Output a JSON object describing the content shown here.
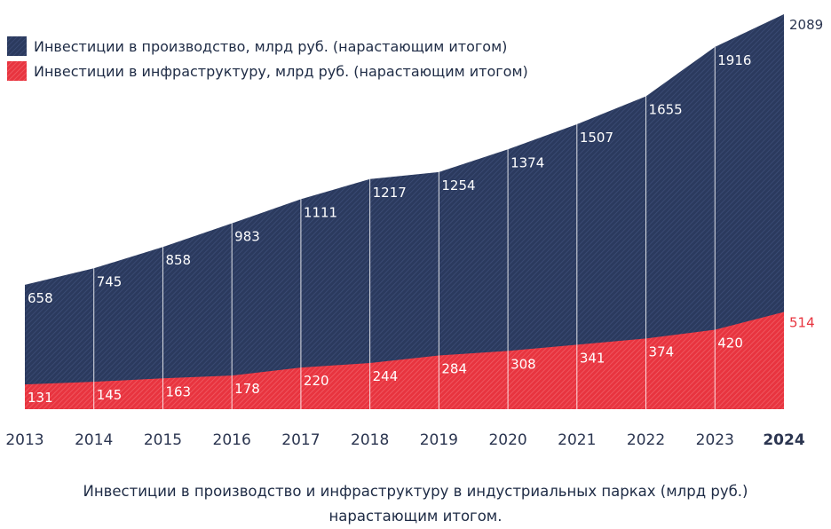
{
  "legend": {
    "series_production": "Инвестиции в производство, млрд руб. (нарастающим итогом)",
    "series_infrastructure": "Инвестиции в инфраструктуру, млрд руб. (нарастающим итогом)"
  },
  "caption": {
    "line1": "Инвестиции в производство и инфраструктуру в индустриальных парках (млрд руб.)",
    "line2": "нарастающим итогом."
  },
  "colors": {
    "production": "#2b3a5e",
    "infrastructure": "#e8343f",
    "axis_text": "#2b3550"
  },
  "chart_data": {
    "type": "area",
    "categories": [
      "2013",
      "2014",
      "2015",
      "2016",
      "2017",
      "2018",
      "2019",
      "2020",
      "2021",
      "2022",
      "2023",
      "2024"
    ],
    "highlight_category": "2024",
    "series": [
      {
        "name": "Инвестиции в производство, млрд руб. (нарастающим итогом)",
        "values": [
          658,
          745,
          858,
          983,
          1111,
          1217,
          1254,
          1374,
          1507,
          1655,
          1916,
          2089
        ]
      },
      {
        "name": "Инвестиции в инфраструктуру, млрд руб. (нарастающим итогом)",
        "values": [
          131,
          145,
          163,
          178,
          220,
          244,
          284,
          308,
          341,
          374,
          420,
          514
        ]
      }
    ],
    "ylim": [
      0,
      2089
    ],
    "grid": false,
    "legend_position": "top-left"
  }
}
